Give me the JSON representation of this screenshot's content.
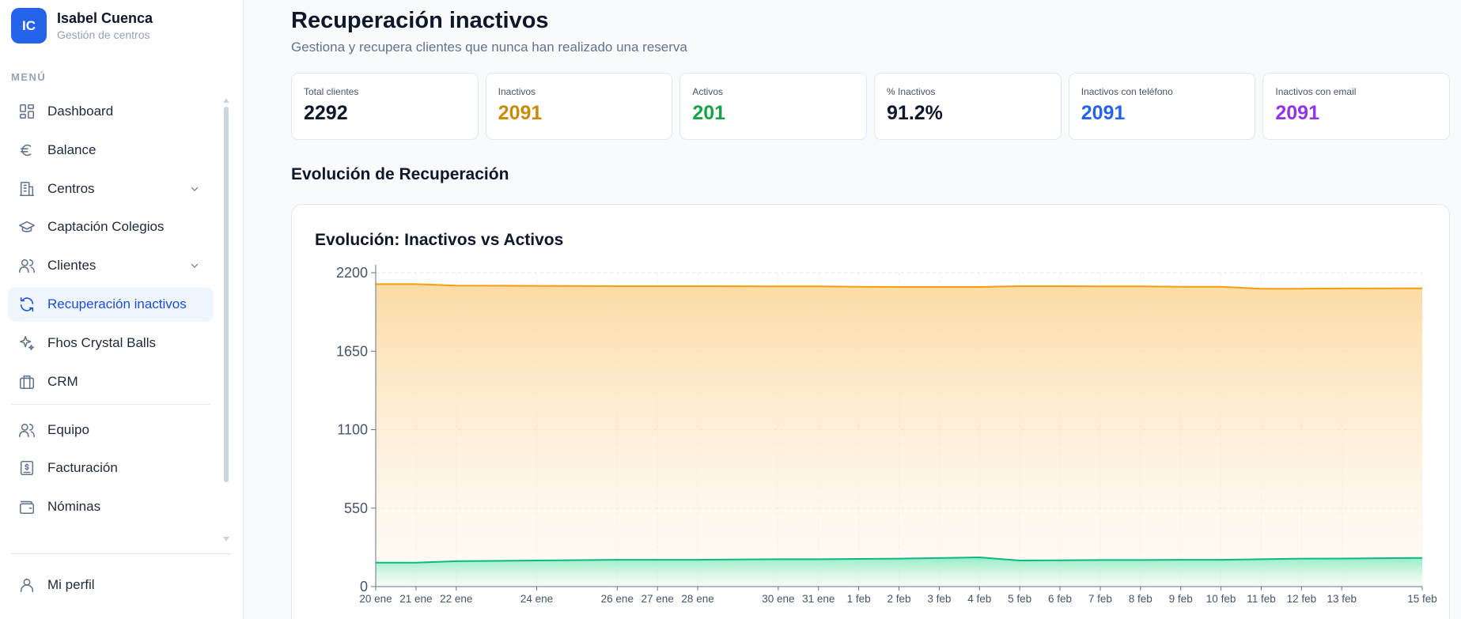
{
  "brand": {
    "initials": "IC",
    "name": "Isabel Cuenca",
    "subtitle": "Gestión de centros"
  },
  "sidebar": {
    "menu_label": "MENÚ",
    "items": [
      {
        "label": "Dashboard",
        "icon": "dashboard-icon"
      },
      {
        "label": "Balance",
        "icon": "euro-icon"
      },
      {
        "label": "Centros",
        "icon": "building-icon",
        "expandable": true
      },
      {
        "label": "Captación Colegios",
        "icon": "graduation-cap-icon"
      },
      {
        "label": "Clientes",
        "icon": "users-icon",
        "expandable": true
      },
      {
        "label": "Recuperación inactivos",
        "icon": "refresh-icon",
        "active": true
      },
      {
        "label": "Fhos Crystal Balls",
        "icon": "sparkles-icon"
      },
      {
        "label": "CRM",
        "icon": "briefcase-icon"
      }
    ],
    "items_secondary": [
      {
        "label": "Equipo",
        "icon": "users-icon"
      },
      {
        "label": "Facturación",
        "icon": "invoice-icon"
      },
      {
        "label": "Nóminas",
        "icon": "wallet-icon"
      }
    ],
    "profile": {
      "label": "Mi perfil",
      "icon": "user-icon"
    }
  },
  "page": {
    "title": "Recuperación inactivos",
    "subtitle": "Gestiona y recupera clientes que nunca han realizado una reserva"
  },
  "stats": [
    {
      "label": "Total clientes",
      "value": "2292",
      "color": "#0f172a"
    },
    {
      "label": "Inactivos",
      "value": "2091",
      "color": "#ca8a04"
    },
    {
      "label": "Activos",
      "value": "201",
      "color": "#16a34a"
    },
    {
      "label": "% Inactivos",
      "value": "91.2%",
      "color": "#0f172a"
    },
    {
      "label": "Inactivos con teléfono",
      "value": "2091",
      "color": "#2563eb"
    },
    {
      "label": "Inactivos con email",
      "value": "2091",
      "color": "#9333ea"
    }
  ],
  "section_title": "Evolución de Recuperación",
  "chart_data": {
    "type": "area",
    "title": "Evolución: Inactivos vs Activos",
    "xlabel": "",
    "ylabel": "",
    "ylim": [
      0,
      2200
    ],
    "yticks": [
      0,
      550,
      1100,
      1650,
      2200
    ],
    "grid": true,
    "x": [
      "2024-01-20",
      "2024-01-21",
      "2024-01-22",
      "2024-01-24",
      "2024-01-26",
      "2024-01-27",
      "2024-01-28",
      "2024-01-30",
      "2024-01-31",
      "2024-02-01",
      "2024-02-02",
      "2024-02-03",
      "2024-02-04",
      "2024-02-05",
      "2024-02-06",
      "2024-02-07",
      "2024-02-08",
      "2024-02-09",
      "2024-02-10",
      "2024-02-11",
      "2024-02-12",
      "2024-02-13",
      "2024-02-15"
    ],
    "x_tick_labels": [
      "20 ene",
      "21 ene",
      "22 ene",
      "24 ene",
      "26 ene",
      "27 ene",
      "28 ene",
      "30 ene",
      "31 ene",
      "1 feb",
      "2 feb",
      "3 feb",
      "4 feb",
      "5 feb",
      "6 feb",
      "7 feb",
      "8 feb",
      "9 feb",
      "10 feb",
      "11 feb",
      "12 feb",
      "13 feb",
      "15 feb"
    ],
    "series": [
      {
        "color": "#f59e0b",
        "values": [
          2120,
          2120,
          2110,
          2108,
          2106,
          2106,
          2106,
          2104,
          2104,
          2102,
          2100,
          2100,
          2100,
          2106,
          2106,
          2104,
          2104,
          2102,
          2102,
          2088,
          2088,
          2090,
          2091
        ]
      },
      {
        "color": "#10b981",
        "values": [
          168,
          168,
          178,
          183,
          188,
          188,
          188,
          192,
          192,
          194,
          196,
          200,
          205,
          183,
          184,
          186,
          186,
          188,
          188,
          192,
          196,
          197,
          201
        ]
      }
    ]
  }
}
